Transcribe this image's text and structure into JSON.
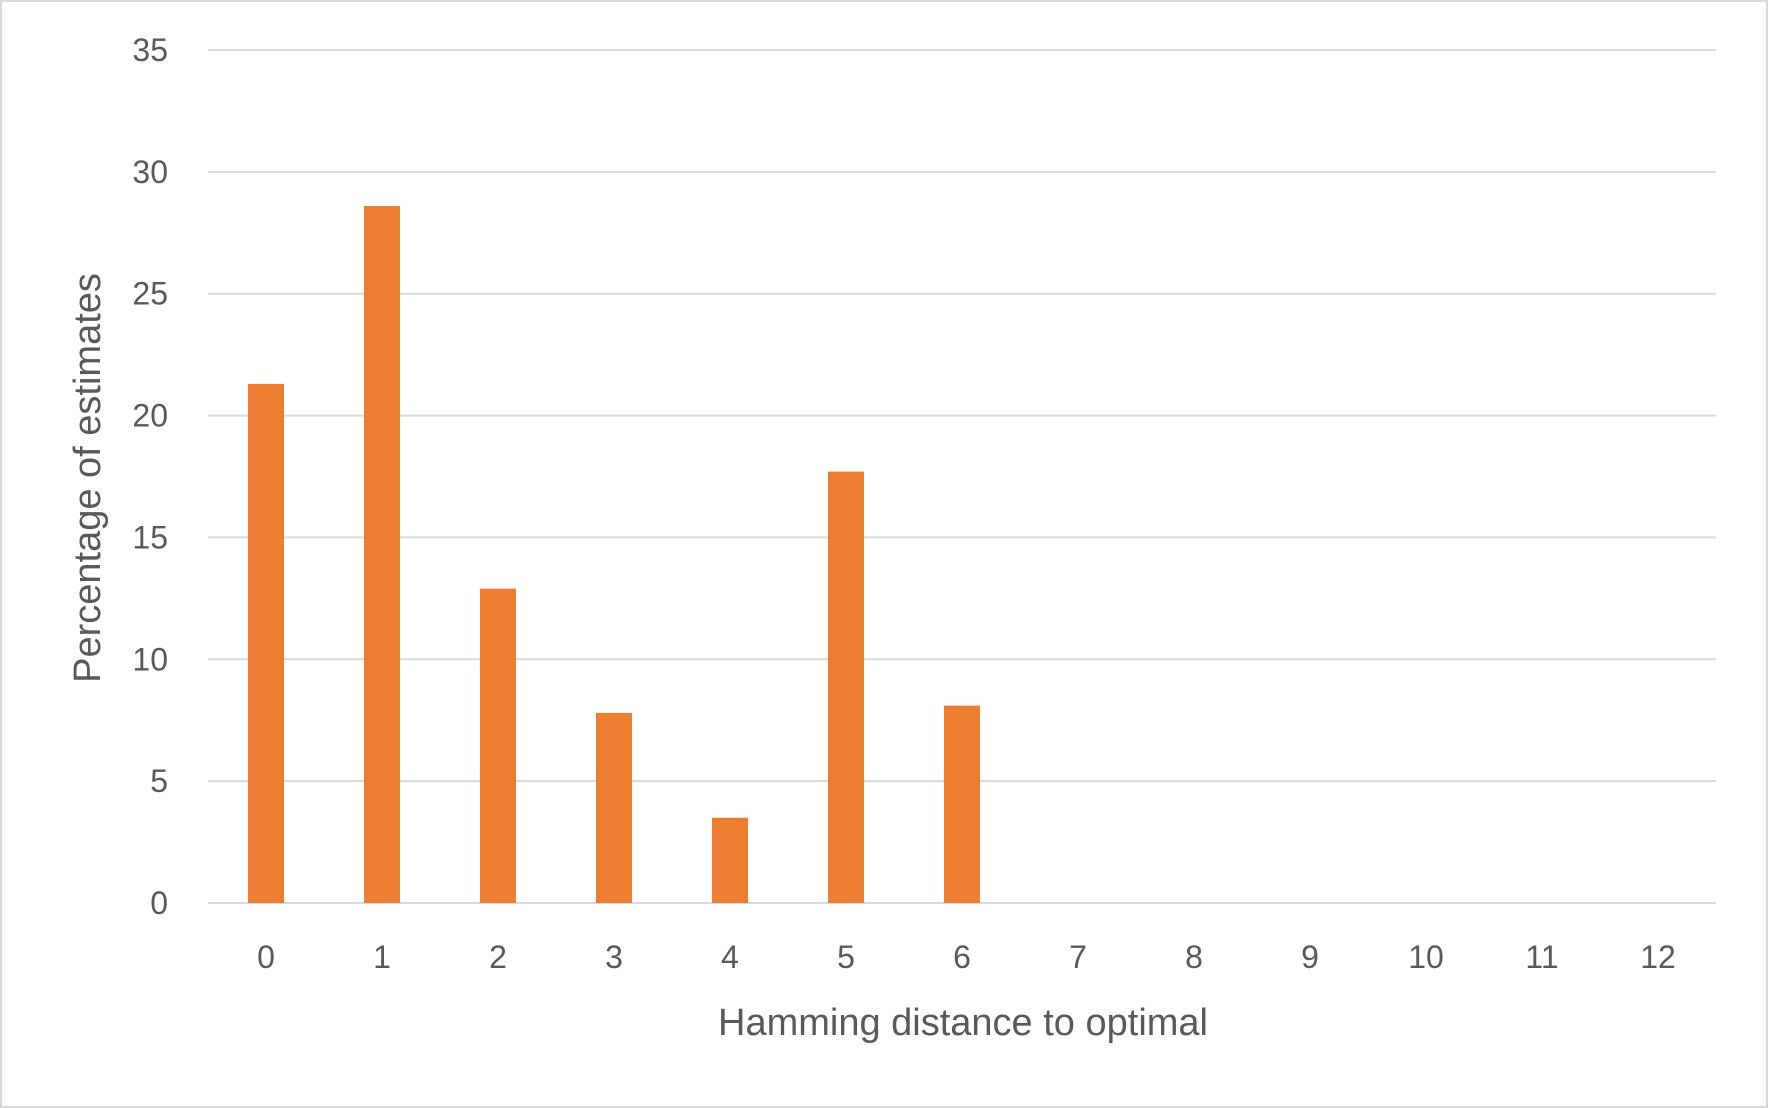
{
  "chart_data": {
    "type": "bar",
    "title": "",
    "xlabel": "Hamming distance to optimal",
    "ylabel": "Percentage of estimates",
    "categories": [
      "0",
      "1",
      "2",
      "3",
      "4",
      "5",
      "6",
      "7",
      "8",
      "9",
      "10",
      "11",
      "12"
    ],
    "values": [
      21.3,
      28.6,
      12.9,
      7.8,
      3.5,
      17.7,
      8.1,
      0,
      0,
      0,
      0,
      0,
      0
    ],
    "ylim": [
      0,
      35
    ],
    "yticks": [
      0,
      5,
      10,
      15,
      20,
      25,
      30,
      35
    ],
    "grid": true,
    "legend": "none",
    "colors": {
      "bar": "#ED7D31",
      "grid": "#D9D9D9",
      "text": "#595959",
      "border": "#D9D9D9"
    }
  }
}
